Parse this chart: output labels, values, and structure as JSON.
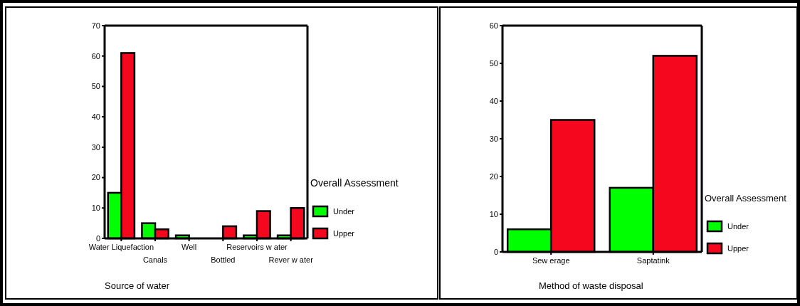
{
  "chart_data": [
    {
      "type": "bar",
      "xlabel": "Source of water",
      "legend_title": "Overall Assessment",
      "legend": "right",
      "categories": [
        "Water Liquefaction",
        "Canals",
        "Well",
        "Bottled",
        "Reservoirs w ater",
        "Rever w ater"
      ],
      "series": [
        {
          "name": "Under",
          "color": "#00ff00",
          "values": [
            15,
            5,
            1,
            0,
            1,
            1
          ]
        },
        {
          "name": "Upper",
          "color": "#f5081e",
          "values": [
            61,
            3,
            0,
            4,
            9,
            10
          ]
        }
      ],
      "ylim": [
        0,
        70
      ],
      "yticks": [
        0,
        10,
        20,
        30,
        40,
        50,
        60,
        70
      ]
    },
    {
      "type": "bar",
      "xlabel": "Method of waste disposal",
      "legend_title": "Overall Assessment",
      "legend": "right",
      "categories": [
        "Sew erage",
        "Saptatink"
      ],
      "series": [
        {
          "name": "Under",
          "color": "#00ff00",
          "values": [
            6,
            17
          ]
        },
        {
          "name": "Upper",
          "color": "#f5081e",
          "values": [
            35,
            52
          ]
        }
      ],
      "ylim": [
        0,
        60
      ],
      "yticks": [
        0,
        10,
        20,
        30,
        40,
        50,
        60
      ]
    }
  ]
}
